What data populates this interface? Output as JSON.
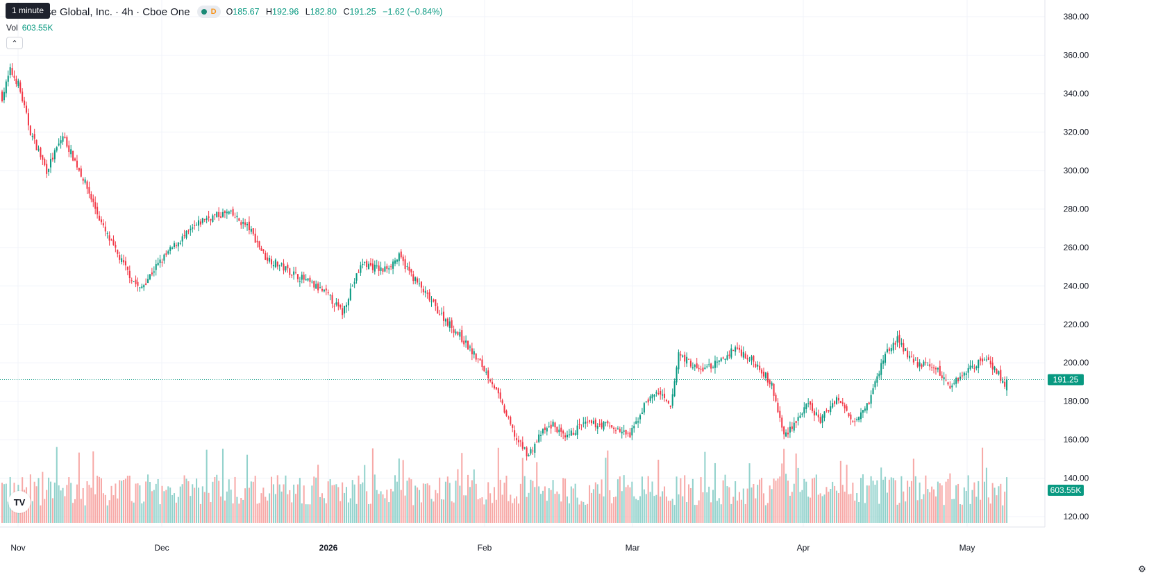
{
  "legend": {
    "symbol": "se Global, Inc. · 4h · Cboe One",
    "dot_color": "#1b8a76",
    "d_letter": "D",
    "o_label": "O",
    "o_value": "185.67",
    "h_label": "H",
    "h_value": "192.96",
    "l_label": "L",
    "l_value": "182.80",
    "c_label": "C",
    "c_value": "191.25",
    "change": "−1.62 (−0.84%)"
  },
  "tooltip": "1 minute",
  "volume": {
    "label": "Vol",
    "value": "603.55K"
  },
  "collapse_icon": "chevron-up-icon",
  "logo_text": "TV",
  "colors": {
    "up": "#089981",
    "down": "#f23645",
    "up_vol": "#92d2cc",
    "down_vol": "#f7a9a7",
    "grid": "#f0f3fa",
    "axis_text": "#131722"
  },
  "chart_data": {
    "type": "candlestick",
    "price_axis": {
      "ticks": [
        380,
        360,
        340,
        320,
        300,
        280,
        260,
        240,
        220,
        200,
        180,
        160,
        140,
        120
      ],
      "labels": [
        "380.00",
        "360.00",
        "340.00",
        "320.00",
        "300.00",
        "280.00",
        "260.00",
        "240.00",
        "220.00",
        "200.00",
        "180.00",
        "160.00",
        "140.00",
        "120.00"
      ],
      "range": [
        114,
        384
      ]
    },
    "time_axis": {
      "labels": [
        "Nov",
        "Dec",
        "2026",
        "Feb",
        "Mar",
        "Apr",
        "May"
      ]
    },
    "last_price": {
      "value": 191.25,
      "label": "191.25"
    },
    "last_volume": {
      "label": "603.55K"
    },
    "segments": [
      [
        0,
        338
      ],
      [
        4,
        352
      ],
      [
        8,
        345
      ],
      [
        14,
        320
      ],
      [
        22,
        300
      ],
      [
        30,
        318
      ],
      [
        40,
        296
      ],
      [
        50,
        270
      ],
      [
        56,
        258
      ],
      [
        64,
        244
      ],
      [
        68,
        238
      ],
      [
        76,
        250
      ],
      [
        86,
        262
      ],
      [
        100,
        275
      ],
      [
        112,
        278
      ],
      [
        122,
        270
      ],
      [
        130,
        255
      ],
      [
        138,
        250
      ],
      [
        148,
        244
      ],
      [
        160,
        236
      ],
      [
        168,
        226
      ],
      [
        172,
        238
      ],
      [
        178,
        252
      ],
      [
        188,
        248
      ],
      [
        196,
        255
      ],
      [
        206,
        240
      ],
      [
        216,
        226
      ],
      [
        226,
        214
      ],
      [
        236,
        200
      ],
      [
        242,
        190
      ],
      [
        248,
        175
      ],
      [
        254,
        160
      ],
      [
        260,
        152
      ],
      [
        266,
        163
      ],
      [
        272,
        168
      ],
      [
        278,
        160
      ],
      [
        286,
        168
      ],
      [
        298,
        168
      ],
      [
        310,
        162
      ],
      [
        318,
        180
      ],
      [
        324,
        185
      ],
      [
        330,
        176
      ],
      [
        334,
        205
      ],
      [
        344,
        196
      ],
      [
        354,
        200
      ],
      [
        362,
        208
      ],
      [
        374,
        198
      ],
      [
        380,
        188
      ],
      [
        386,
        162
      ],
      [
        392,
        170
      ],
      [
        398,
        178
      ],
      [
        404,
        170
      ],
      [
        412,
        182
      ],
      [
        420,
        170
      ],
      [
        428,
        180
      ],
      [
        436,
        205
      ],
      [
        442,
        212
      ],
      [
        450,
        200
      ],
      [
        460,
        198
      ],
      [
        468,
        188
      ],
      [
        476,
        196
      ],
      [
        486,
        203
      ],
      [
        492,
        194
      ],
      [
        496,
        186
      ]
    ]
  }
}
